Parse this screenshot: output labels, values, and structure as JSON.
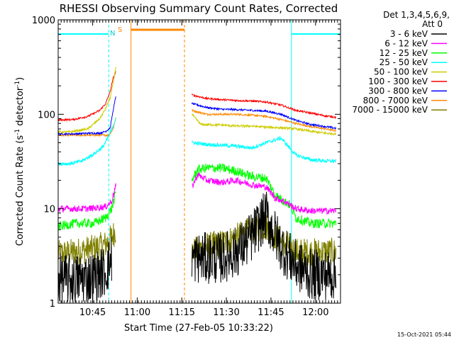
{
  "chart_data": {
    "type": "line",
    "title": "RHESSI Observing Summary Count Rates, Corrected",
    "xlabel": "Start Time (27-Feb-05 10:33:22)",
    "ylabel": "Corrected Count Rate (s⁻¹ detector⁻¹)",
    "ylabel_parts": {
      "pre": "Corrected Count Rate (s",
      "e1": "-1",
      "mid": " detector",
      "e2": "-1",
      "post": ")"
    },
    "y_scale": "log",
    "ylim": [
      1,
      1000
    ],
    "xlim_minutes": [
      0,
      95
    ],
    "x_ticks": [
      {
        "label": "10:45",
        "min": 11.6
      },
      {
        "label": "11:00",
        "min": 26.6
      },
      {
        "label": "11:15",
        "min": 41.6
      },
      {
        "label": "11:30",
        "min": 56.6
      },
      {
        "label": "11:45",
        "min": 71.6
      },
      {
        "label": "12:00",
        "min": 86.6
      }
    ],
    "y_ticks": [
      {
        "label": "1",
        "value": 1
      },
      {
        "label": "10",
        "value": 10
      },
      {
        "label": "100",
        "value": 100
      },
      {
        "label": "1000",
        "value": 1000
      }
    ],
    "legend_header": [
      "Det 1,3,4,5,6,9,",
      "Att 0"
    ],
    "legend_position": "right",
    "timestamp": "15-Oct-2021 05:44",
    "annotations": {
      "n_label": "N",
      "s_label": "S"
    },
    "night_intervals": [
      [
        0,
        17
      ],
      [
        78.5,
        95
      ]
    ],
    "saa_interval": [
      24.5,
      42.5
    ],
    "series": [
      {
        "name": "3 - 6 keV",
        "color": "#000000",
        "noise": 0.55,
        "segments": [
          {
            "x": [
              0,
              6,
              12,
              16,
              18
            ],
            "y": [
              1.8,
              1.8,
              1.9,
              2.2,
              3
            ]
          },
          {
            "x": [
              45,
              50,
              55,
              60,
              65,
              68,
              70,
              72,
              75,
              78,
              80,
              85,
              90,
              93.5
            ],
            "y": [
              3,
              3,
              3,
              3.5,
              5,
              7,
              8.5,
              6,
              4,
              3,
              2.5,
              2,
              2,
              2
            ]
          }
        ]
      },
      {
        "name": "6 - 12 keV",
        "color": "#ff00ff",
        "noise": 0.07,
        "segments": [
          {
            "x": [
              0,
              10,
              16,
              18,
              19.5
            ],
            "y": [
              10,
              10,
              10.5,
              12,
              18
            ]
          },
          {
            "x": [
              45,
              47,
              50,
              55,
              60,
              65,
              70,
              73,
              76,
              78,
              80,
              85,
              90,
              93.5
            ],
            "y": [
              17,
              23,
              20,
              19,
              20,
              18,
              17,
              13,
              12,
              11,
              10,
              9.5,
              9.5,
              9.5
            ]
          }
        ]
      },
      {
        "name": "12 - 25 keV",
        "color": "#00ff00",
        "noise": 0.1,
        "segments": [
          {
            "x": [
              0,
              6,
              12,
              16,
              18,
              19.5
            ],
            "y": [
              6.5,
              7,
              7,
              8,
              10,
              15
            ]
          },
          {
            "x": [
              45,
              47,
              50,
              55,
              60,
              65,
              70,
              73,
              76,
              78,
              80,
              85,
              90,
              93.5
            ],
            "y": [
              20,
              26,
              27,
              27,
              25,
              22,
              21,
              14,
              12,
              11,
              8,
              7,
              7,
              7
            ]
          }
        ]
      },
      {
        "name": "25 - 50 keV",
        "color": "#00ffff",
        "noise": 0.04,
        "segments": [
          {
            "x": [
              0,
              4,
              8,
              12,
              15,
              17,
              18.5,
              19.5
            ],
            "y": [
              30,
              30,
              32,
              38,
              45,
              58,
              75,
              95
            ]
          },
          {
            "x": [
              45,
              50,
              55,
              60,
              65,
              70,
              75,
              80,
              85,
              90,
              93.5
            ],
            "y": [
              50,
              48,
              47,
              46,
              44,
              50,
              56,
              37,
              33,
              32,
              32
            ]
          }
        ]
      },
      {
        "name": "50 - 100 keV",
        "color": "#cccc00",
        "noise": 0.025,
        "segments": [
          {
            "x": [
              0,
              4,
              10,
              14,
              16,
              17.5,
              18.5,
              19.5
            ],
            "y": [
              65,
              65,
              70,
              90,
              115,
              150,
              210,
              330
            ]
          },
          {
            "x": [
              45,
              48,
              55,
              60,
              65,
              70,
              75,
              80,
              85,
              90,
              93.5
            ],
            "y": [
              100,
              78,
              77,
              75,
              75,
              73,
              72,
              70,
              66,
              63,
              62
            ]
          }
        ]
      },
      {
        "name": "100 - 300 keV",
        "color": "#ff0000",
        "noise": 0.02,
        "segments": [
          {
            "x": [
              0,
              5,
              10,
              14,
              16,
              17.5,
              18.5,
              19.5
            ],
            "y": [
              87,
              88,
              95,
              110,
              130,
              175,
              240,
              290
            ]
          },
          {
            "x": [
              45,
              50,
              55,
              60,
              65,
              70,
              75,
              80,
              85,
              90,
              93.5
            ],
            "y": [
              160,
              147,
              143,
              140,
              138,
              135,
              125,
              110,
              103,
              96,
              93
            ]
          }
        ]
      },
      {
        "name": "300 - 800 keV",
        "color": "#0000ff",
        "noise": 0.02,
        "segments": [
          {
            "x": [
              0,
              5,
              10,
              14,
              16,
              17.5,
              18.5,
              19.5
            ],
            "y": [
              62,
              62,
              63,
              63,
              66,
              72,
              110,
              160
            ]
          },
          {
            "x": [
              45,
              50,
              55,
              60,
              65,
              70,
              75,
              80,
              85,
              90,
              93.5
            ],
            "y": [
              130,
              118,
              113,
              112,
              110,
              108,
              100,
              86,
              78,
              74,
              71
            ]
          }
        ]
      },
      {
        "name": "800 - 7000 keV",
        "color": "#ff8800",
        "noise": 0.02,
        "segments": [
          {
            "x": [
              0,
              5,
              10,
              14,
              17,
              18.5,
              19.5
            ],
            "y": [
              60,
              60,
              60,
              60,
              60,
              70,
              95
            ]
          },
          {
            "x": [
              45,
              50,
              55,
              60,
              65,
              70,
              75,
              80,
              85,
              90,
              93.5
            ],
            "y": [
              110,
              100,
              100,
              100,
              98,
              95,
              88,
              80,
              74,
              70,
              67
            ]
          }
        ]
      },
      {
        "name": "7000 - 15000 keV",
        "color": "#808000",
        "noise": 0.3,
        "segments": [
          {
            "x": [
              0,
              6,
              12,
              16,
              18,
              19.5
            ],
            "y": [
              3.3,
              3.5,
              3.8,
              4.2,
              5,
              6
            ]
          },
          {
            "x": [
              45,
              50,
              55,
              60,
              65,
              68,
              70,
              72,
              75,
              78,
              80,
              85,
              90,
              93.5
            ],
            "y": [
              3.5,
              4,
              4.3,
              5,
              6,
              6.3,
              6.5,
              5.5,
              4.5,
              4,
              3.5,
              3.5,
              3.5,
              3.5
            ]
          }
        ]
      }
    ]
  }
}
